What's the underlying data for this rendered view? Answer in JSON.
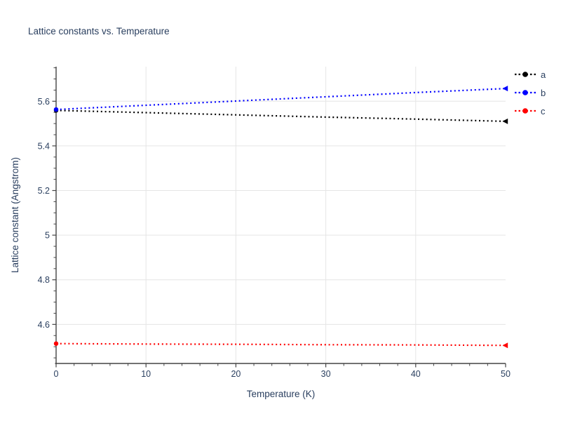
{
  "chart_data": {
    "type": "line",
    "title": "Lattice constants vs. Temperature",
    "xlabel": "Temperature (K)",
    "ylabel": "Lattice constant (Angstrom)",
    "xlim": [
      0,
      50
    ],
    "ylim": [
      4.425,
      5.755
    ],
    "xticks": [
      0,
      10,
      20,
      30,
      40,
      50
    ],
    "xtick_labels": [
      "0",
      "10",
      "20",
      "30",
      "40",
      "50"
    ],
    "yticks": [
      4.6,
      4.8,
      5.0,
      5.2,
      5.4,
      5.6
    ],
    "ytick_labels": [
      "4.6",
      "4.8",
      "5",
      "5.2",
      "5.4",
      "5.6"
    ],
    "x_minor_step": 2,
    "y_minor_step": 0.05,
    "grid": true,
    "legend_position": "right-outside",
    "line_style": "dotted",
    "marker_start": "circle",
    "marker_end": "triangle-left",
    "x": [
      0,
      10,
      20,
      30,
      40,
      50
    ],
    "series": [
      {
        "name": "a",
        "color": "#000000",
        "values": [
          5.559,
          5.549,
          5.539,
          5.529,
          5.52,
          5.51
        ]
      },
      {
        "name": "b",
        "color": "#0000ff",
        "values": [
          5.563,
          5.582,
          5.601,
          5.62,
          5.639,
          5.657
        ]
      },
      {
        "name": "c",
        "color": "#ff0000",
        "values": [
          4.514,
          4.512,
          4.511,
          4.509,
          4.508,
          4.506
        ]
      }
    ],
    "colors": {
      "text": "#2a3f5f",
      "grid": "#e5e5e5",
      "axis": "#444444",
      "background": "#ffffff"
    }
  }
}
